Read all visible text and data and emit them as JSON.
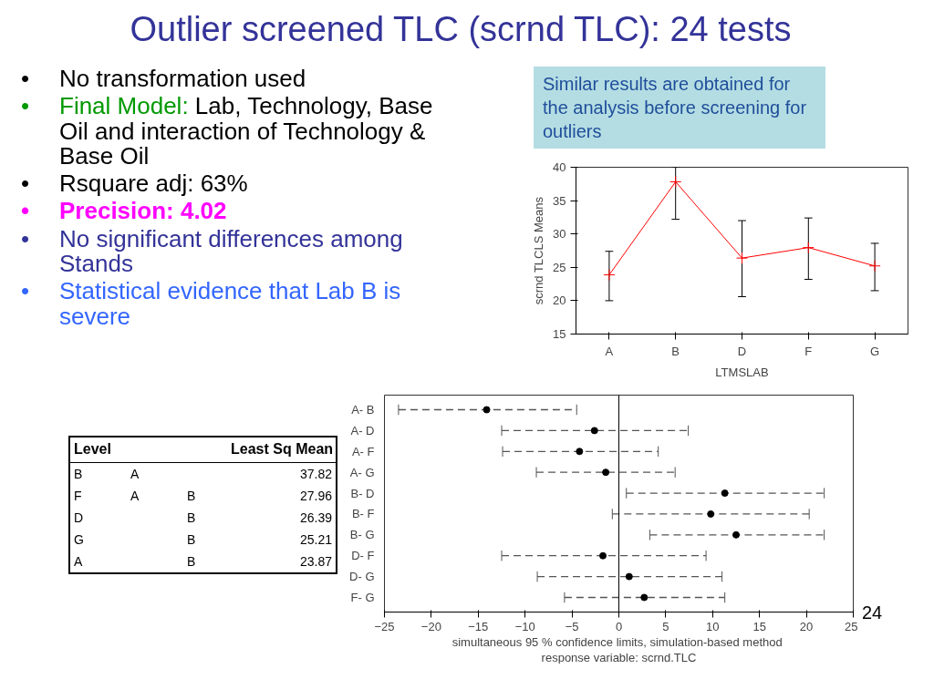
{
  "chart_data": [
    {
      "type": "other",
      "title": "Outlier screened TLC (scrnd TLC): 24 tests",
      "annotations": [
        "• No transformation used",
        "• Final Model: Lab, Technology, Base Oil and interaction of Technology & Base Oil",
        "• Rsquare adj: 63%",
        "• Precision: 4.02",
        "• No significant differences among Stands",
        "• Statistical evidence that Lab B is severe",
        "Similar results are obtained for the analysis before screening for outliers",
        "24"
      ]
    },
    {
      "type": "line",
      "categories": [
        "A",
        "B",
        "D",
        "F",
        "G"
      ],
      "xlabel": "LTMSLAB",
      "ylabel": "scrnd TLCLS Means",
      "ylim": [
        15,
        40
      ],
      "yticks": [
        15,
        20,
        25,
        30,
        35,
        40
      ],
      "grid": false,
      "marker": "cross",
      "line_style": "solid",
      "series": [
        {
          "color": "#ff0000",
          "values": [
            23.87,
            37.82,
            26.39,
            27.96,
            25.21
          ],
          "errors": [
            [
              20,
              27.4
            ],
            [
              32.2,
              40
            ],
            [
              20.6,
              32
            ],
            [
              23.2,
              32.4
            ],
            [
              21.5,
              28.6
            ]
          ]
        }
      ]
    },
    {
      "type": "other",
      "annotations": [
        "Level",
        "Least Sq Mean",
        "B",
        "A",
        null,
        "37.82",
        "F",
        "A",
        "B",
        "27.96",
        "D",
        null,
        "B",
        "26.39",
        "G",
        null,
        "B",
        "25.21",
        "A",
        null,
        "B",
        "23.87"
      ]
    },
    {
      "type": "scatter",
      "orientation": "horizontal",
      "categories": [
        "A- B",
        "A- D",
        "A- F",
        "A- G",
        "B- D",
        "B- F",
        "B- G",
        "D- F",
        "D- G",
        "F- G"
      ],
      "xlim": [
        -25,
        25
      ],
      "xticks": [
        -25,
        -20,
        -15,
        -10,
        -5,
        0,
        5,
        10,
        15,
        20,
        25
      ],
      "grid": false,
      "marker": "circle",
      "line_style": "dashed",
      "series": [
        {
          "color": "#000000",
          "values": [
            -14.1,
            -2.6,
            -4.2,
            -1.4,
            11.3,
            9.8,
            12.5,
            -1.7,
            1.1,
            2.7
          ],
          "errors": [
            [
              -23.5,
              -4.5
            ],
            [
              -12.5,
              7.4
            ],
            [
              -12.4,
              4.2
            ],
            [
              -8.8,
              6.0
            ],
            [
              0.8,
              21.9
            ],
            [
              -0.7,
              20.3
            ],
            [
              3.3,
              21.9
            ],
            [
              -12.5,
              9.3
            ],
            [
              -8.7,
              11.0
            ],
            [
              -5.8,
              11.3
            ]
          ]
        }
      ],
      "ref_lines": [
        {
          "axis": "x",
          "value": 0,
          "label": null
        }
      ],
      "annotations": [
        "simultaneous  95 % confidence limits, simulation-based method",
        "response variable: scrnd.TLC"
      ]
    }
  ]
}
